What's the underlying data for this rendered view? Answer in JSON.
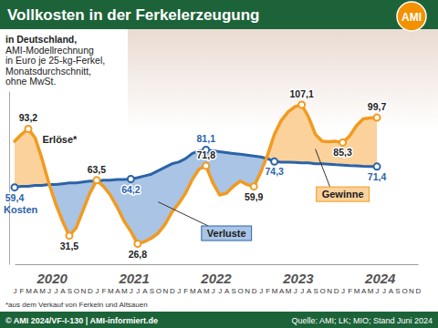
{
  "chart_data": {
    "type": "line",
    "title": "Vollkosten in der Ferkelerzeugung",
    "logo": "AMI",
    "subtitle": [
      "in Deutschland,",
      "AMI-Modellrechnung",
      "in Euro je 25-kg-Ferkel,",
      "Monatsdurchschnitt,",
      "ohne MwSt."
    ],
    "categories": [
      "J",
      "F",
      "M",
      "A",
      "M",
      "J",
      "J",
      "A",
      "S",
      "O",
      "N",
      "D",
      "J",
      "F",
      "M",
      "A",
      "M",
      "J",
      "J",
      "A",
      "S",
      "O",
      "N",
      "D",
      "J",
      "F",
      "M",
      "A",
      "M",
      "J",
      "J",
      "A",
      "S",
      "O",
      "N",
      "D",
      "J",
      "F",
      "M",
      "A",
      "M",
      "J",
      "J",
      "A",
      "S",
      "O",
      "N",
      "D",
      "J",
      "F",
      "M",
      "A",
      "M",
      "J",
      "J",
      "A",
      "S",
      "O",
      "N",
      "D"
    ],
    "year_labels": [
      "2020",
      "2021",
      "2022",
      "2023",
      "2024"
    ],
    "series": [
      {
        "name": "Erlöse*",
        "color": "#f29a1f",
        "values": [
          86,
          90,
          93.2,
          88,
          76,
          62,
          50,
          40,
          31.5,
          36,
          46,
          56,
          63.5,
          60,
          55,
          48,
          40,
          34,
          26.8,
          28,
          30,
          33,
          38,
          45,
          50,
          56,
          64,
          70,
          71.8,
          62,
          55,
          56,
          60,
          63,
          61,
          59.9,
          68,
          78,
          90,
          98,
          103,
          106,
          107.1,
          100,
          90,
          86,
          85.8,
          86,
          85.3,
          89,
          95,
          99,
          99.5,
          99.7,
          null,
          null,
          null,
          null,
          null,
          null
        ],
        "value_labels": [
          null,
          null,
          "93,2",
          null,
          null,
          null,
          null,
          null,
          "31,5",
          null,
          null,
          null,
          "63,5",
          null,
          null,
          null,
          null,
          null,
          "26,8",
          null,
          null,
          null,
          null,
          null,
          null,
          null,
          null,
          null,
          "71,8",
          null,
          null,
          null,
          null,
          null,
          null,
          "59,9",
          null,
          null,
          null,
          null,
          null,
          null,
          "107,1",
          null,
          null,
          null,
          null,
          null,
          "85,3",
          null,
          null,
          null,
          null,
          "99,7",
          null,
          null,
          null,
          null,
          null,
          null
        ]
      },
      {
        "name": "Kosten",
        "color": "#2b63a8",
        "values": [
          59.4,
          60,
          60,
          60.5,
          60.5,
          61,
          61,
          61.5,
          62,
          62,
          62.5,
          63,
          63,
          63.5,
          63.5,
          64,
          64,
          64.2,
          65,
          66,
          67,
          69,
          71,
          73,
          74,
          76,
          79,
          80.5,
          81.1,
          80.5,
          80,
          79.5,
          79,
          78.5,
          78,
          77.5,
          77,
          76,
          74.3,
          74,
          74,
          73.8,
          73.5,
          73.5,
          73,
          73,
          72.8,
          72.5,
          72.3,
          72,
          71.8,
          71.6,
          71.5,
          71.4,
          null,
          null,
          null,
          null,
          null,
          null
        ],
        "value_labels": [
          "59,4",
          null,
          null,
          null,
          null,
          null,
          null,
          null,
          null,
          null,
          null,
          null,
          null,
          null,
          null,
          null,
          null,
          "64,2",
          null,
          null,
          null,
          null,
          null,
          null,
          null,
          null,
          null,
          null,
          "81,1",
          null,
          null,
          null,
          null,
          null,
          null,
          null,
          null,
          null,
          "74,3",
          null,
          null,
          null,
          null,
          null,
          null,
          null,
          null,
          null,
          null,
          null,
          null,
          null,
          null,
          "71,4",
          null,
          null,
          null,
          null,
          null,
          null
        ]
      }
    ],
    "annotations": [
      {
        "text": "Verluste",
        "color": "#a9c4e4"
      },
      {
        "text": "Gewinne",
        "color": "#fbd29c"
      }
    ],
    "ylim": [
      15,
      115
    ],
    "tick_labels": "x",
    "footnote": "*aus dem Verkauf von Ferkeln und Altsauen",
    "copyright": "© AMI 2024/VF-I-130 | AMI-informiert.de",
    "source": "Quelle: AMI; LK; MIO; Stand Juni 2024"
  }
}
